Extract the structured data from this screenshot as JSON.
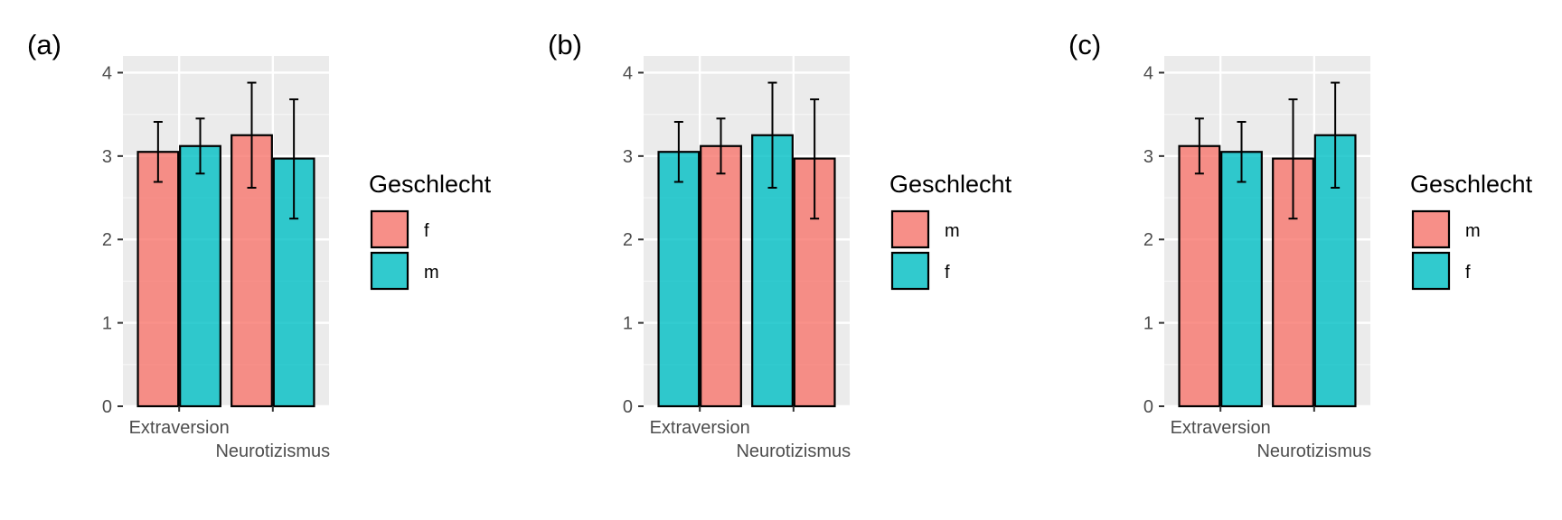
{
  "chart_data": [
    {
      "type": "bar",
      "panel_label": "(a)",
      "categories": [
        "Extraversion",
        "Neurotizismus"
      ],
      "series": [
        {
          "name": "f",
          "color": "#F8766D",
          "values": [
            3.05,
            3.25
          ],
          "error_low": [
            2.69,
            2.62
          ],
          "error_high": [
            3.41,
            3.88
          ]
        },
        {
          "name": "m",
          "color": "#00BFC4",
          "values": [
            3.12,
            2.97
          ],
          "error_low": [
            2.79,
            2.25
          ],
          "error_high": [
            3.45,
            3.68
          ]
        }
      ],
      "yticks": [
        "0",
        "1",
        "2",
        "3",
        "4"
      ],
      "ylim": [
        0,
        4.2
      ],
      "legend": {
        "title": "Geschlecht",
        "position": "right",
        "entries": [
          {
            "label": "f",
            "color": "#F8766D"
          },
          {
            "label": "m",
            "color": "#00BFC4"
          }
        ]
      }
    },
    {
      "type": "bar",
      "panel_label": "(b)",
      "categories": [
        "Extraversion",
        "Neurotizismus"
      ],
      "series": [
        {
          "name": "f",
          "color": "#00BFC4",
          "values": [
            3.05,
            3.25
          ],
          "error_low": [
            2.69,
            2.62
          ],
          "error_high": [
            3.41,
            3.88
          ]
        },
        {
          "name": "m",
          "color": "#F8766D",
          "values": [
            3.12,
            2.97
          ],
          "error_low": [
            2.79,
            2.25
          ],
          "error_high": [
            3.45,
            3.68
          ]
        }
      ],
      "yticks": [
        "0",
        "1",
        "2",
        "3",
        "4"
      ],
      "ylim": [
        0,
        4.2
      ],
      "legend": {
        "title": "Geschlecht",
        "position": "right",
        "entries": [
          {
            "label": "m",
            "color": "#F8766D"
          },
          {
            "label": "f",
            "color": "#00BFC4"
          }
        ]
      }
    },
    {
      "type": "bar",
      "panel_label": "(c)",
      "categories": [
        "Extraversion",
        "Neurotizismus"
      ],
      "series": [
        {
          "name": "m",
          "color": "#F8766D",
          "values": [
            3.12,
            2.97
          ],
          "error_low": [
            2.79,
            2.25
          ],
          "error_high": [
            3.45,
            3.68
          ]
        },
        {
          "name": "f",
          "color": "#00BFC4",
          "values": [
            3.05,
            3.25
          ],
          "error_low": [
            2.69,
            2.62
          ],
          "error_high": [
            3.41,
            3.88
          ]
        }
      ],
      "yticks": [
        "0",
        "1",
        "2",
        "3",
        "4"
      ],
      "ylim": [
        0,
        4.2
      ],
      "legend": {
        "title": "Geschlecht",
        "position": "right",
        "entries": [
          {
            "label": "m",
            "color": "#F8766D"
          },
          {
            "label": "f",
            "color": "#00BFC4"
          }
        ]
      }
    }
  ]
}
